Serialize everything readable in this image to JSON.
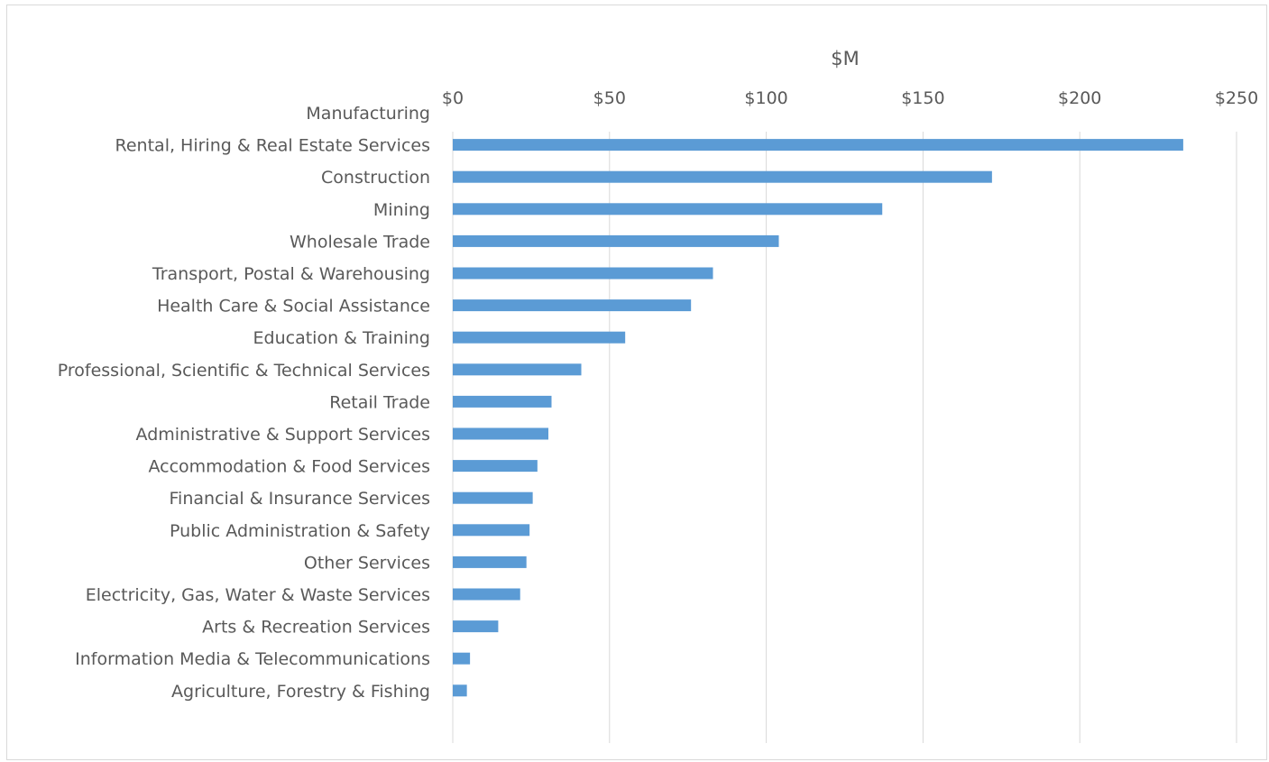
{
  "chart_data": {
    "type": "bar",
    "orientation": "horizontal",
    "axis_position": "top",
    "xlabel": "$M",
    "ylabel": "",
    "xlim": [
      0,
      250
    ],
    "ticks": [
      0,
      50,
      100,
      150,
      200,
      250
    ],
    "tick_labels": [
      "$0",
      "$50",
      "$100",
      "$150",
      "$200",
      "$250"
    ],
    "grid": true,
    "legend": "none",
    "bar_color": "#5b9bd5",
    "categories": [
      "Manufacturing",
      "Rental, Hiring & Real Estate Services",
      "Construction",
      "Mining",
      "Wholesale Trade",
      "Transport, Postal & Warehousing",
      "Health Care & Social Assistance",
      "Education & Training",
      "Professional, Scientific & Technical Services",
      "Retail Trade",
      "Administrative & Support Services",
      "Accommodation & Food Services",
      "Financial & Insurance Services",
      "Public Administration & Safety",
      "Other Services",
      "Electricity, Gas, Water & Waste Services",
      "Arts & Recreation Services",
      "Information Media & Telecommunications",
      "Agriculture, Forestry & Fishing"
    ],
    "values": [
      null,
      233,
      172,
      137,
      104,
      83,
      76,
      55,
      41,
      31.5,
      30.5,
      27,
      25.5,
      24.5,
      23.5,
      21.5,
      14.5,
      5.5,
      4.5
    ]
  }
}
